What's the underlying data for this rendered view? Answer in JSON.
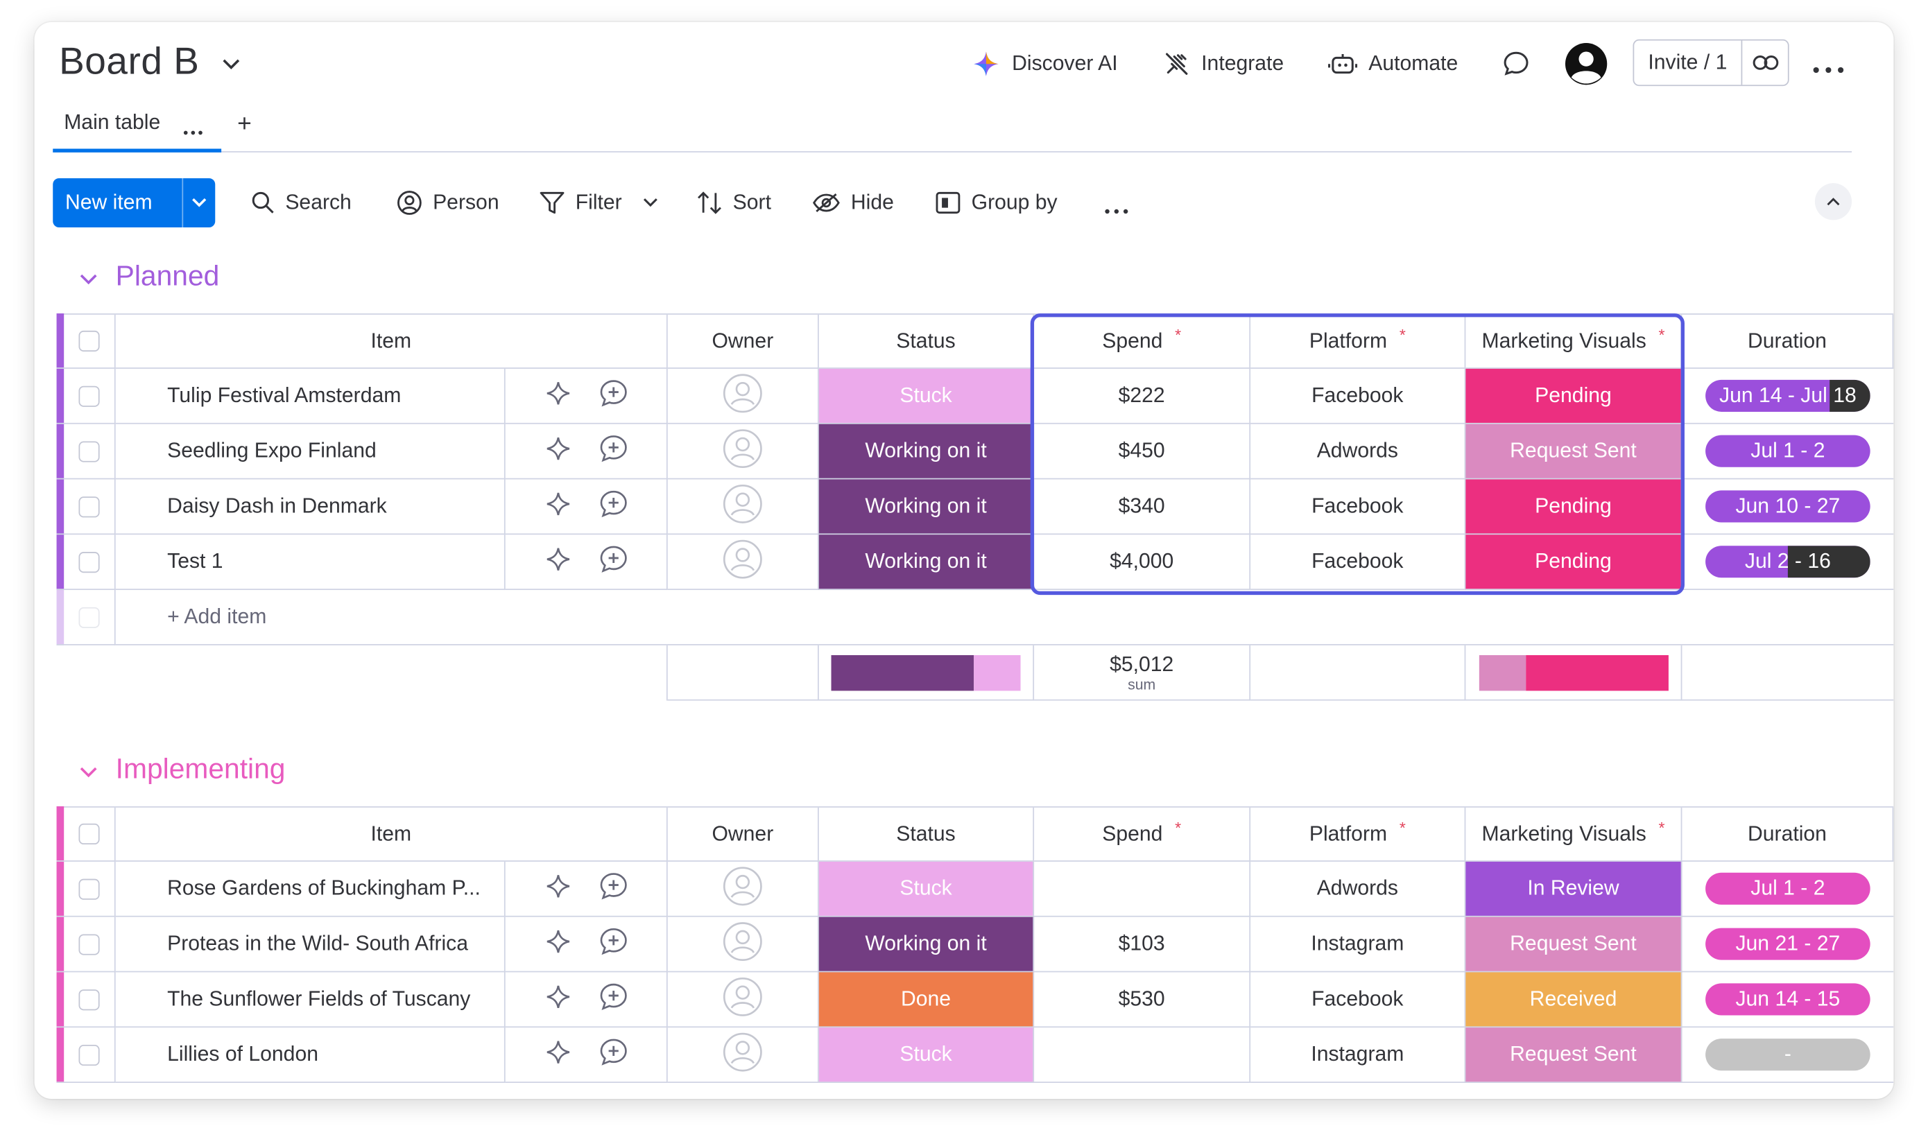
{
  "header": {
    "board_title": "Board B",
    "discover_ai": "Discover AI",
    "integrate": "Integrate",
    "automate": "Automate",
    "invite": "Invite / 1"
  },
  "tabs": {
    "main_table": "Main table",
    "add": "+"
  },
  "toolbar": {
    "new_item": "New item",
    "search": "Search",
    "person": "Person",
    "filter": "Filter",
    "sort": "Sort",
    "hide": "Hide",
    "group_by": "Group by"
  },
  "columns": {
    "item": "Item",
    "owner": "Owner",
    "status": "Status",
    "spend": "Spend",
    "platform": "Platform",
    "visuals": "Marketing Visuals",
    "duration": "Duration",
    "required_mark": "*"
  },
  "colors": {
    "stuck": "#ecaaeb",
    "working": "#733d82",
    "done": "#ee7c4a",
    "pending": "#ec2f80",
    "request_sent": "#da8ac0",
    "in_review": "#9d52d6",
    "received": "#efad52",
    "planned_accent": "#a25ddc",
    "implementing_accent": "#e85bbf",
    "duration_purple": "#9b4fdc",
    "duration_pink": "#e44ec0",
    "duration_empty": "#c4c4c4"
  },
  "groups": [
    {
      "name": "Planned",
      "add_item": "+ Add item",
      "rows": [
        {
          "item": "Tulip Festival Amsterdam",
          "status": "Stuck",
          "spend": "$222",
          "platform": "Facebook",
          "visuals": "Pending",
          "duration": "Jun 14 - Jul 18",
          "progress": 0.75
        },
        {
          "item": "Seedling Expo Finland",
          "status": "Working on it",
          "spend": "$450",
          "platform": "Adwords",
          "visuals": "Request Sent",
          "duration": "Jul 1 - 2",
          "progress": 1.0
        },
        {
          "item": "Daisy Dash in Denmark",
          "status": "Working on it",
          "spend": "$340",
          "platform": "Facebook",
          "visuals": "Pending",
          "duration": "Jun 10 - 27",
          "progress": 1.0
        },
        {
          "item": "Test 1",
          "status": "Working on it",
          "spend": "$4,000",
          "platform": "Facebook",
          "visuals": "Pending",
          "duration": "Jul 2 - 16",
          "progress": 0.5
        }
      ],
      "summary": {
        "spend_total": "$5,012",
        "spend_label": "sum",
        "status_split": [
          0.75,
          0.25
        ],
        "visuals_split": [
          0.25,
          0.75
        ]
      }
    },
    {
      "name": "Implementing",
      "rows": [
        {
          "item": "Rose Gardens of Buckingham P...",
          "status": "Stuck",
          "spend": "",
          "platform": "Adwords",
          "visuals": "In Review",
          "duration": "Jul 1 - 2"
        },
        {
          "item": "Proteas in the Wild- South Africa",
          "status": "Working on it",
          "spend": "$103",
          "platform": "Instagram",
          "visuals": "Request Sent",
          "duration": "Jun 21 - 27"
        },
        {
          "item": "The Sunflower Fields of Tuscany",
          "status": "Done",
          "spend": "$530",
          "platform": "Facebook",
          "visuals": "Received",
          "duration": "Jun 14 - 15"
        },
        {
          "item": "Lillies of London",
          "status": "Stuck",
          "spend": "",
          "platform": "Instagram",
          "visuals": "Request Sent",
          "duration": "-"
        }
      ]
    }
  ]
}
